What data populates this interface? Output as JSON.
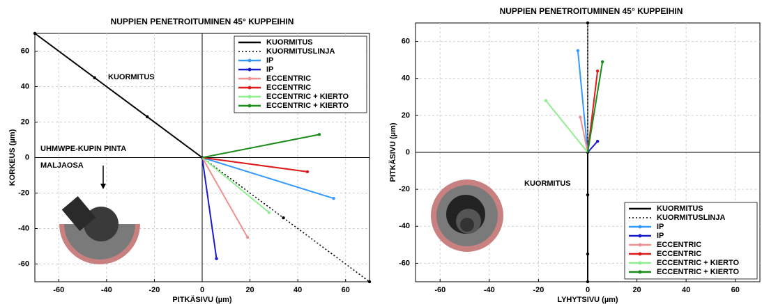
{
  "chart_data": [
    {
      "type": "line",
      "title": "NUPPIEN PENETROITUMINEN 45° KUPPEIHIN",
      "xlabel": "PITKÄSIVU (µm)",
      "ylabel": "KORKEUS (µm)",
      "xlim": [
        -70,
        70
      ],
      "ylim": [
        -70,
        70
      ],
      "xticks": [
        -60,
        -40,
        -20,
        0,
        20,
        40,
        60
      ],
      "yticks": [
        -60,
        -40,
        -20,
        0,
        20,
        40,
        60
      ],
      "grid": true,
      "legend": "upper right",
      "annotations": [
        "KUORMITUS",
        "UHMWPE-KUPIN PINTA",
        "MALJAOSA"
      ],
      "series": [
        {
          "name": "KUORMITUS",
          "color": "#000000",
          "linestyle": "solid",
          "x": [
            -70,
            -45,
            -23,
            0
          ],
          "values": [
            70,
            45,
            23,
            0
          ]
        },
        {
          "name": "KUORMITUSLINJA",
          "color": "#000000",
          "linestyle": "dotted",
          "x": [
            0,
            34,
            70
          ],
          "values": [
            0,
            -34,
            -70
          ]
        },
        {
          "name": "IP",
          "color": "#3399ff",
          "linestyle": "solid",
          "x": [
            0,
            55
          ],
          "values": [
            0,
            -23
          ]
        },
        {
          "name": "IP",
          "color": "#1a1acc",
          "linestyle": "solid",
          "x": [
            0,
            6
          ],
          "values": [
            0,
            -57
          ]
        },
        {
          "name": "ECCENTRIC",
          "color": "#f09090",
          "linestyle": "solid",
          "x": [
            0,
            19
          ],
          "values": [
            0,
            -45
          ]
        },
        {
          "name": "ECCENTRIC",
          "color": "#e01a1a",
          "linestyle": "solid",
          "x": [
            0,
            44
          ],
          "values": [
            0,
            -8
          ]
        },
        {
          "name": "ECCENTRIC + KIERTO",
          "color": "#90ee90",
          "linestyle": "solid",
          "x": [
            0,
            28
          ],
          "values": [
            0,
            -31
          ]
        },
        {
          "name": "ECCENTRIC + KIERTO",
          "color": "#1a8c1a",
          "linestyle": "solid",
          "x": [
            0,
            49
          ],
          "values": [
            0,
            13
          ]
        }
      ]
    },
    {
      "type": "line",
      "title": "NUPPIEN PENETROITUMINEN 45° KUPPEIHIN",
      "xlabel": "LYHYTSIVU (µm)",
      "ylabel": "PITKÄSIVU (µm)",
      "xlim": [
        -70,
        70
      ],
      "ylim": [
        -70,
        70
      ],
      "xticks": [
        -60,
        -40,
        -20,
        0,
        20,
        40,
        60
      ],
      "yticks": [
        -60,
        -40,
        -20,
        0,
        20,
        40,
        60
      ],
      "grid": true,
      "legend": "lower right",
      "annotations": [
        "KUORMITUS"
      ],
      "series": [
        {
          "name": "KUORMITUS",
          "color": "#000000",
          "linestyle": "solid",
          "x": [
            0,
            0,
            0,
            0
          ],
          "values": [
            -70,
            -55,
            -23,
            0
          ]
        },
        {
          "name": "KUORMITUSLINJA",
          "color": "#000000",
          "linestyle": "dotted",
          "x": [
            0,
            0
          ],
          "values": [
            0,
            70
          ]
        },
        {
          "name": "IP",
          "color": "#3399ff",
          "linestyle": "solid",
          "x": [
            0,
            -4
          ],
          "values": [
            0,
            55
          ]
        },
        {
          "name": "IP",
          "color": "#1a1acc",
          "linestyle": "solid",
          "x": [
            0,
            4
          ],
          "values": [
            0,
            6
          ]
        },
        {
          "name": "ECCENTRIC",
          "color": "#f09090",
          "linestyle": "solid",
          "x": [
            0,
            -3
          ],
          "values": [
            0,
            19
          ]
        },
        {
          "name": "ECCENTRIC",
          "color": "#e01a1a",
          "linestyle": "solid",
          "x": [
            0,
            4
          ],
          "values": [
            0,
            44
          ]
        },
        {
          "name": "ECCENTRIC + KIERTO",
          "color": "#90ee90",
          "linestyle": "solid",
          "x": [
            0,
            -17
          ],
          "values": [
            0,
            28
          ]
        },
        {
          "name": "ECCENTRIC + KIERTO",
          "color": "#1a8c1a",
          "linestyle": "solid",
          "x": [
            0,
            6
          ],
          "values": [
            0,
            49
          ]
        }
      ]
    }
  ]
}
